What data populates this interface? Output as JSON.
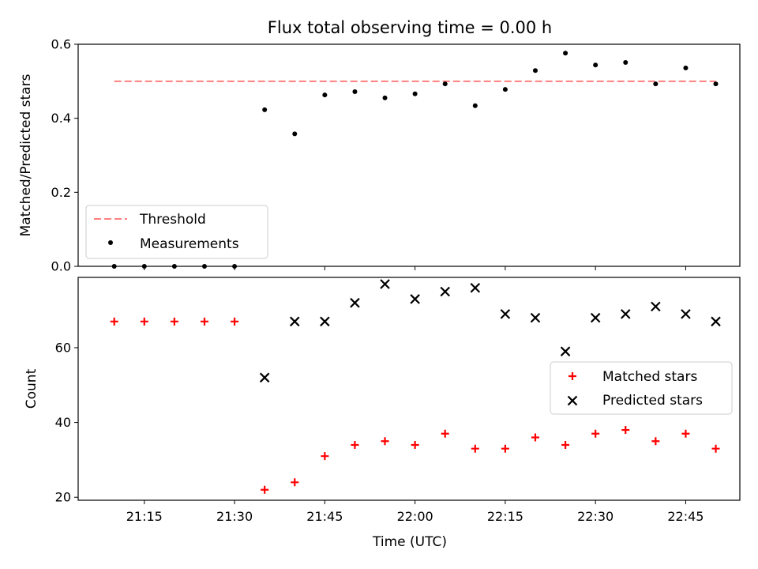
{
  "chart_data": {
    "title": "Flux total observing time = 0.00 h",
    "x_tick_labels": [
      "21:15",
      "21:30",
      "21:45",
      "22:00",
      "22:15",
      "22:30",
      "22:45"
    ],
    "x_tick_minutes": [
      1275,
      1290,
      1305,
      1320,
      1335,
      1350,
      1365
    ],
    "xlabel": "Time (UTC)",
    "x_times": [
      "21:10",
      "21:15",
      "21:20",
      "21:25",
      "21:30",
      "21:35",
      "21:40",
      "21:45",
      "21:50",
      "21:55",
      "22:00",
      "22:05",
      "22:10",
      "22:15",
      "22:20",
      "22:25",
      "22:30",
      "22:35",
      "22:40",
      "22:45",
      "22:50"
    ],
    "x_minutes": [
      1270,
      1275,
      1280,
      1285,
      1290,
      1295,
      1300,
      1305,
      1310,
      1315,
      1320,
      1325,
      1330,
      1335,
      1340,
      1345,
      1350,
      1355,
      1360,
      1365,
      1370
    ],
    "xlim_minutes": [
      1264,
      1374
    ],
    "panels": [
      {
        "type": "scatter",
        "ylabel": "Matched/Predicted stars",
        "ylim": [
          0.0,
          0.6
        ],
        "y_ticks": [
          0.0,
          0.2,
          0.4,
          0.6
        ],
        "y_tick_labels": [
          "0.0",
          "0.2",
          "0.4",
          "0.6"
        ],
        "threshold": {
          "name": "Threshold",
          "value": 0.5,
          "x_range": [
            "21:10",
            "22:50"
          ],
          "color": "#ff7f7f"
        },
        "series": [
          {
            "name": "Measurements",
            "color": "#000000",
            "values": [
              0.0,
              0.0,
              0.0,
              0.0,
              0.0,
              0.423,
              0.358,
              0.463,
              0.472,
              0.455,
              0.466,
              0.493,
              0.434,
              0.478,
              0.529,
              0.576,
              0.544,
              0.551,
              0.493,
              0.536,
              0.493
            ]
          }
        ],
        "legend": {
          "placement": "lower-left",
          "entries": [
            "Threshold",
            "Measurements"
          ]
        }
      },
      {
        "type": "scatter",
        "ylabel": "Count",
        "ylim": [
          19.2,
          78.8
        ],
        "y_ticks": [
          20,
          40,
          60
        ],
        "y_tick_labels": [
          "20",
          "40",
          "60"
        ],
        "series": [
          {
            "name": "Matched stars",
            "marker": "plus",
            "color": "#ff0000",
            "values": [
              67,
              67,
              67,
              67,
              67,
              22,
              24,
              31,
              34,
              35,
              34,
              37,
              33,
              33,
              36,
              34,
              37,
              38,
              35,
              37,
              33
            ]
          },
          {
            "name": "Predicted stars",
            "marker": "x",
            "color": "#000000",
            "values": [
              null,
              null,
              null,
              null,
              null,
              52,
              67,
              67,
              72,
              77,
              73,
              75,
              76,
              69,
              68,
              59,
              68,
              69,
              71,
              69,
              67
            ]
          }
        ],
        "legend": {
          "placement": "center-right",
          "entries": [
            "Matched stars",
            "Predicted stars"
          ]
        }
      }
    ]
  }
}
